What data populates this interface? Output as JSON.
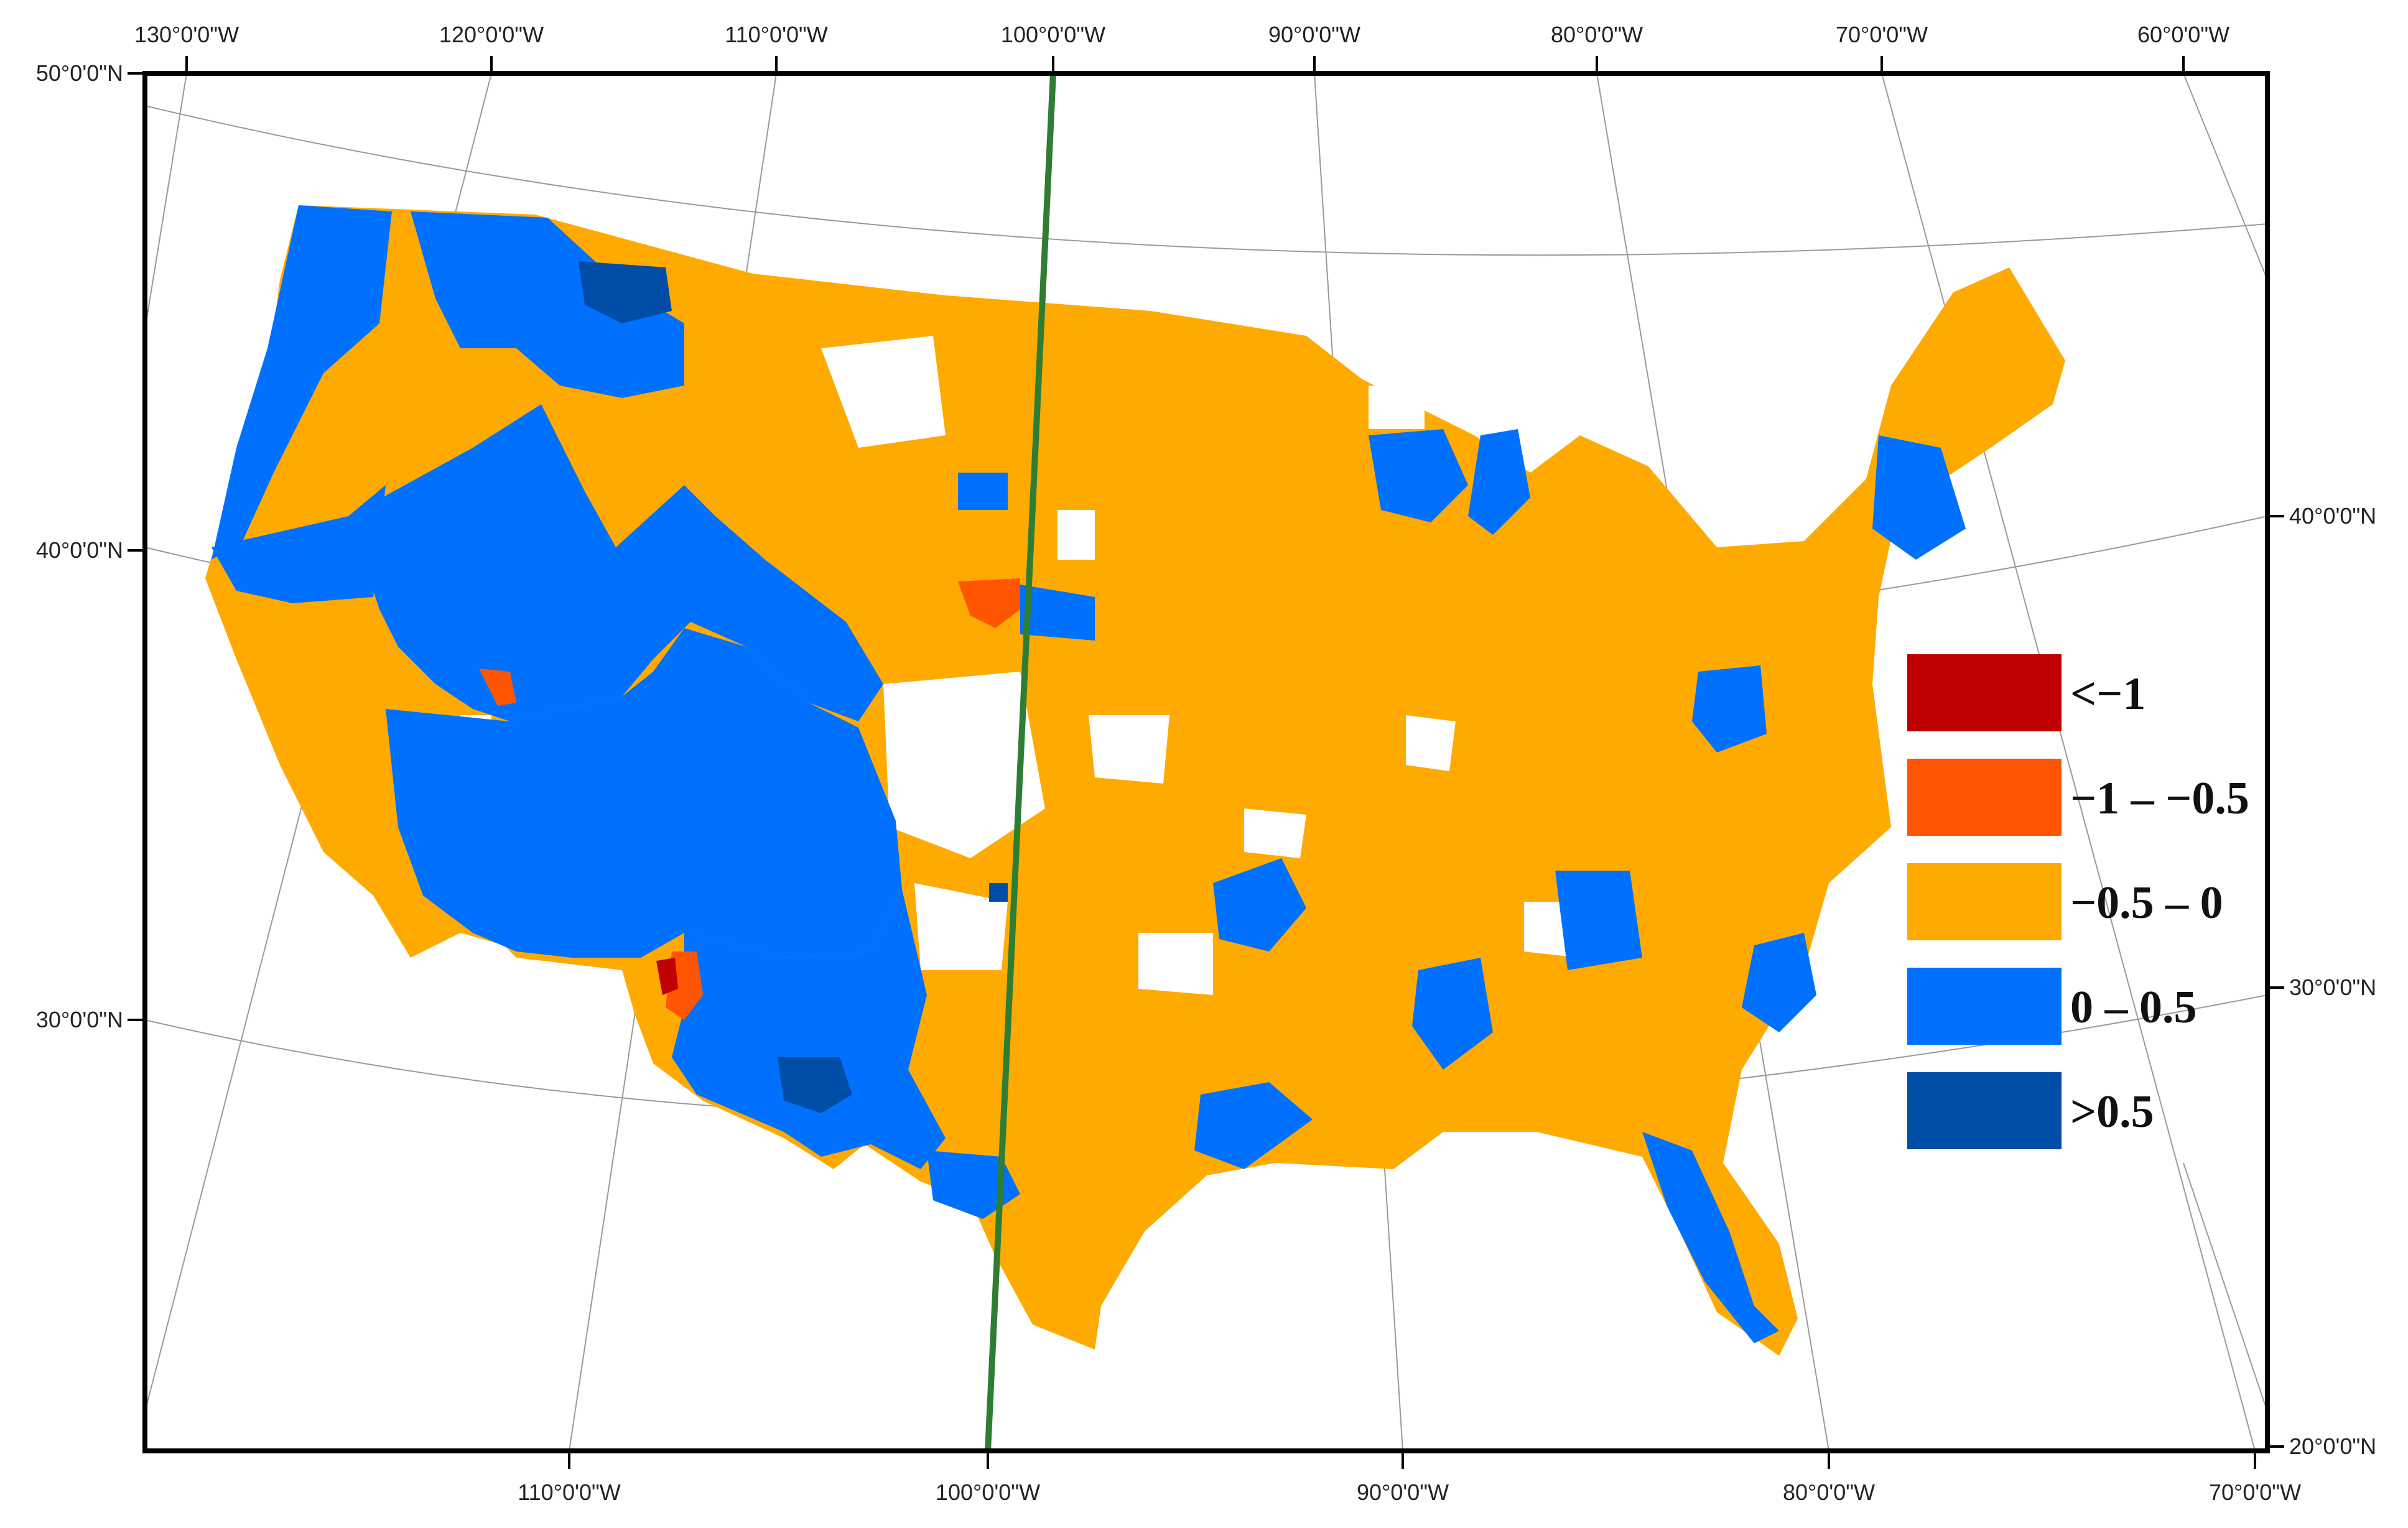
{
  "top_axis": {
    "labels": [
      "130°0'0\"W",
      "120°0'0\"W",
      "110°0'0\"W",
      "100°0'0\"W",
      "90°0'0\"W",
      "80°0'0\"W",
      "70°0'0\"W",
      "60°0'0\"W"
    ]
  },
  "bottom_axis": {
    "labels": [
      "110°0'0\"W",
      "100°0'0\"W",
      "90°0'0\"W",
      "80°0'0\"W",
      "70°0'0\"W"
    ]
  },
  "left_axis": {
    "labels": [
      "50°0'0\"N",
      "40°0'0\"N",
      "30°0'0\"N"
    ]
  },
  "right_axis": {
    "labels": [
      "40°0'0\"N",
      "30°0'0\"N",
      "20°0'0\"N"
    ]
  },
  "legend": {
    "items": [
      {
        "label": "<−1",
        "color": "#c00000"
      },
      {
        "label": "−1 – −0.5",
        "color": "#ff5500"
      },
      {
        "label": "−0.5 – 0",
        "color": "#ffaa00"
      },
      {
        "label": "0 – 0.5",
        "color": "#0070ff"
      },
      {
        "label": ">0.5",
        "color": "#004da8"
      }
    ]
  },
  "meridian_line": {
    "longitude": "100°0'0\"W",
    "color": "#2e7d32"
  },
  "colors": {
    "lt_minus1": "#c00000",
    "minus1_to_minus05": "#ff5500",
    "minus05_to_0": "#ffaa00",
    "zero_to_05": "#0070ff",
    "gt_05": "#004da8",
    "frame": "#000000",
    "graticule": "#9a9a9a"
  }
}
